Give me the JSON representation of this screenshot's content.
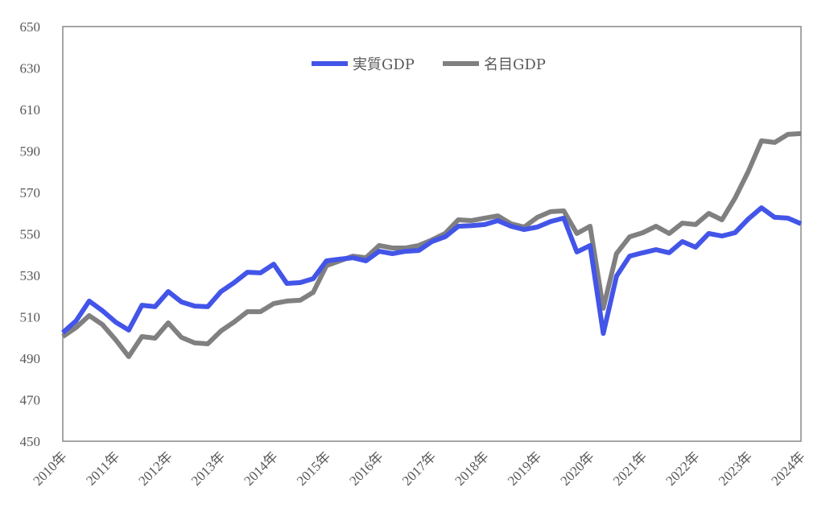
{
  "chart_data": {
    "type": "line",
    "title": "",
    "xlabel": "",
    "ylabel": "",
    "ylim": [
      450,
      650
    ],
    "yticks": [
      450,
      470,
      490,
      510,
      530,
      550,
      570,
      590,
      610,
      630,
      650
    ],
    "xtick_labels": [
      "2010年",
      "2011年",
      "2012年",
      "2013年",
      "2014年",
      "2015年",
      "2016年",
      "2017年",
      "2018年",
      "2019年",
      "2020年",
      "2021年",
      "2022年",
      "2023年",
      "2024年"
    ],
    "x_unit": "quarter (2010Q1 - 2024Q1)",
    "grid": false,
    "legend_position": "top-center",
    "series": [
      {
        "name": "実質GDP",
        "color": "#4355E8",
        "values": [
          502.4,
          508,
          517.6,
          513,
          507.5,
          503.6,
          515.6,
          514.9,
          522.2,
          517.2,
          515.2,
          514.9,
          522.2,
          526.5,
          531.5,
          531.2,
          535.4,
          526.1,
          526.5,
          528.4,
          537,
          537.8,
          538.5,
          537,
          541.6,
          540.5,
          541.6,
          542,
          546.3,
          548.6,
          553.7,
          554,
          554.5,
          556.4,
          553.7,
          552.1,
          553.3,
          556,
          557.6,
          541.3,
          544.4,
          502,
          529.6,
          539.3,
          540.9,
          542.4,
          540.9,
          546.3,
          543.6,
          550.2,
          549,
          550.6,
          557.2,
          562.6,
          558,
          557.6,
          554.9
        ]
      },
      {
        "name": "名目GDP",
        "color": "#808080",
        "values": [
          500.5,
          504.8,
          510.6,
          506.3,
          499,
          490.8,
          500.5,
          499.7,
          507.1,
          500.1,
          497.4,
          497,
          503.2,
          507.5,
          512.5,
          512.5,
          516.4,
          517.6,
          518,
          521.8,
          534.7,
          537,
          539.3,
          538.5,
          544.4,
          543.2,
          543.2,
          544.4,
          547.1,
          550.2,
          556.8,
          556.4,
          557.6,
          558.7,
          554.9,
          553.3,
          558,
          560.7,
          561.1,
          550.2,
          553.7,
          514.1,
          540.5,
          548.6,
          550.6,
          553.7,
          550.2,
          555.2,
          554.5,
          559.9,
          556.8,
          567.3,
          580.1,
          594.9,
          594.1,
          598,
          598.4
        ]
      }
    ]
  }
}
